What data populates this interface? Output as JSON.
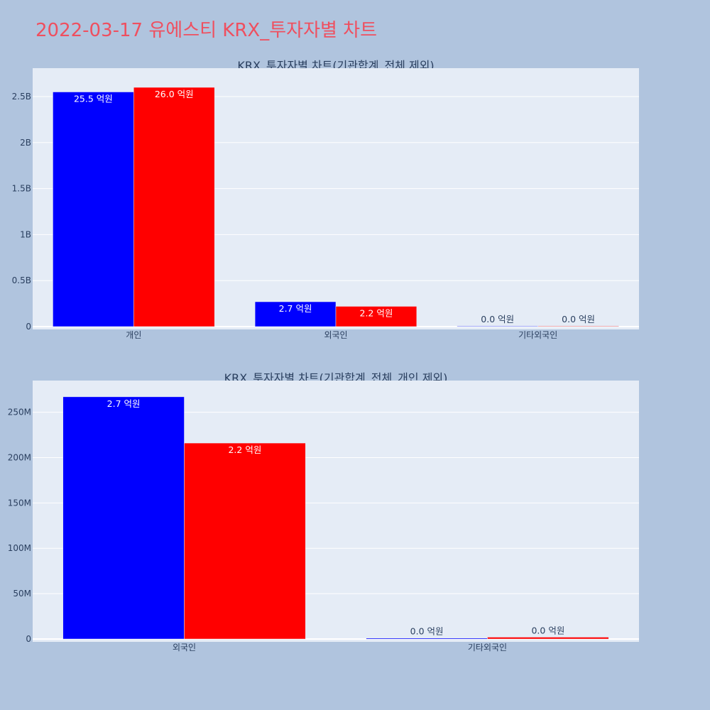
{
  "page": {
    "title": "2022-03-17 유에스티 KRX_투자자별 차트"
  },
  "chart_data": [
    {
      "type": "bar",
      "title": "KRX_투자자별 차트(기관합계_전체 제외)",
      "categories": [
        "개인",
        "외국인",
        "기타외국인"
      ],
      "series": [
        {
          "color": "#0000ff",
          "values": [
            2550000000,
            270000000,
            0
          ],
          "labels": [
            "25.5 억원",
            "2.7 억원",
            "0.0 억원"
          ]
        },
        {
          "color": "#ff0000",
          "values": [
            2600000000,
            220000000,
            0
          ],
          "labels": [
            "26.0 억원",
            "2.2 억원",
            "0.0 억원"
          ]
        }
      ],
      "yticks": [
        {
          "v": 0,
          "label": "0"
        },
        {
          "v": 500000000,
          "label": "0.5B"
        },
        {
          "v": 1000000000,
          "label": "1B"
        },
        {
          "v": 1500000000,
          "label": "1.5B"
        },
        {
          "v": 2000000000,
          "label": "2B"
        },
        {
          "v": 2500000000,
          "label": "2.5B"
        }
      ],
      "ylim": [
        0,
        2770000000
      ],
      "xlabel": "",
      "ylabel": "",
      "grid": true
    },
    {
      "type": "bar",
      "title": "KRX_투자자별 차트(기관합계_전체_개인 제외)",
      "categories": [
        "외국인",
        "기타외국인"
      ],
      "series": [
        {
          "color": "#0000ff",
          "values": [
            267000000,
            1000000
          ],
          "labels": [
            "2.7 억원",
            "0.0 억원"
          ]
        },
        {
          "color": "#ff0000",
          "values": [
            216000000,
            2000000
          ],
          "labels": [
            "2.2 억원",
            "0.0 억원"
          ]
        }
      ],
      "yticks": [
        {
          "v": 0,
          "label": "0"
        },
        {
          "v": 50000000,
          "label": "50M"
        },
        {
          "v": 100000000,
          "label": "100M"
        },
        {
          "v": 150000000,
          "label": "150M"
        },
        {
          "v": 200000000,
          "label": "200M"
        },
        {
          "v": 250000000,
          "label": "250M"
        }
      ],
      "ylim": [
        0,
        281000000
      ],
      "xlabel": "",
      "ylabel": "",
      "grid": true
    }
  ]
}
